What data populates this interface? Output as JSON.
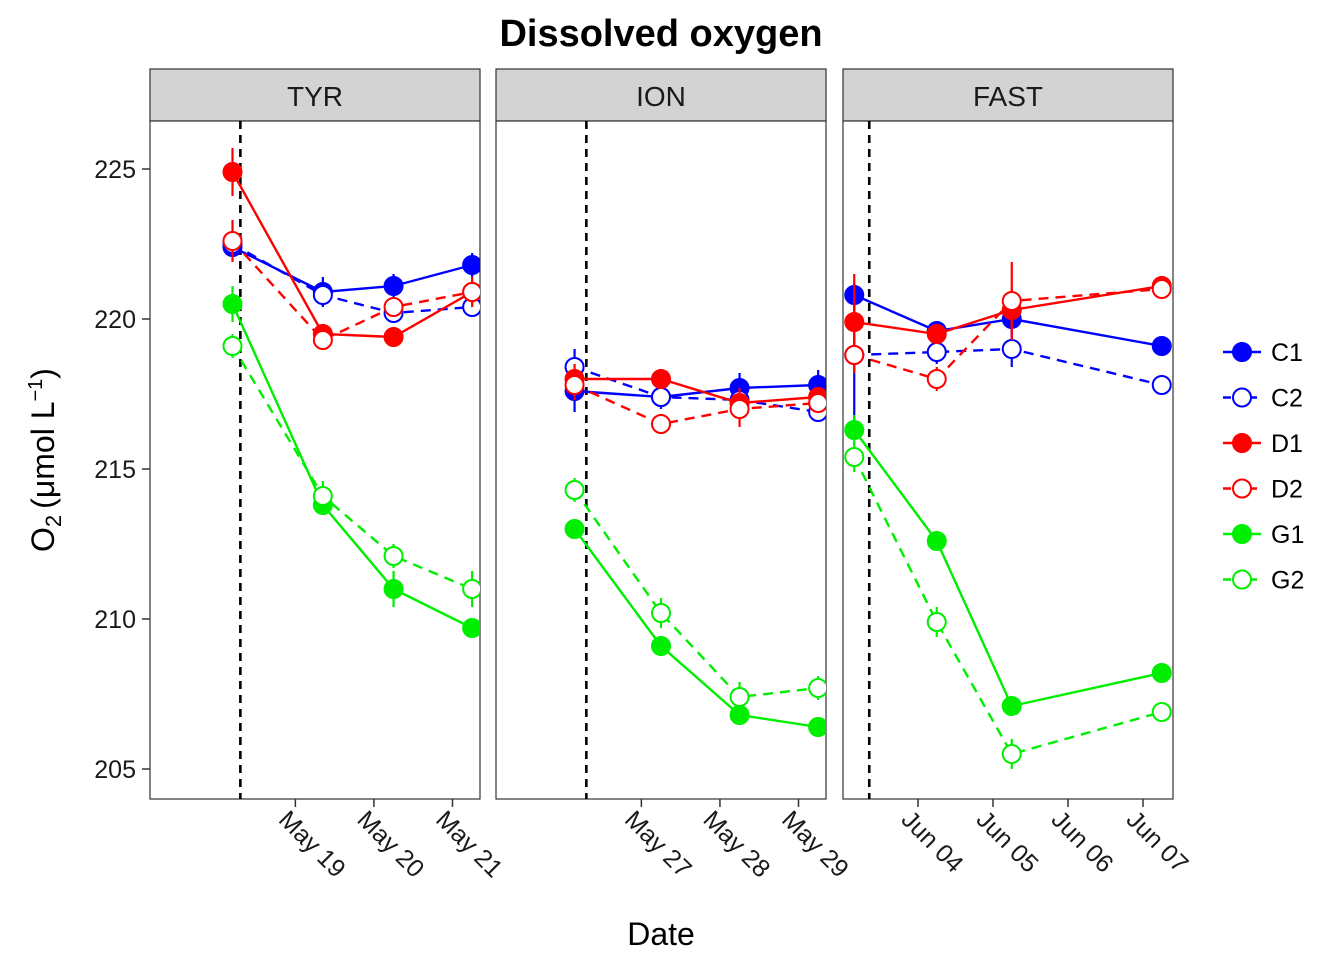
{
  "chart_data": {
    "type": "line",
    "title": "Dissolved oxygen",
    "xlabel": "Date",
    "ylabel": "O₂ (μmol L⁻¹)",
    "ylabel_parts": {
      "main": "O",
      "sub": "2",
      "open": "(",
      "unit": "μmol L",
      "sup": "−1",
      "close": ")"
    },
    "ylim": [
      204,
      226.6
    ],
    "yticks": [
      205,
      210,
      215,
      220,
      225
    ],
    "grid": false,
    "legend_position": "right",
    "legend": [
      {
        "name": "C1",
        "color": "#0000ff",
        "filled": true,
        "dashed": false
      },
      {
        "name": "C2",
        "color": "#0000ff",
        "filled": false,
        "dashed": true
      },
      {
        "name": "D1",
        "color": "#ff0000",
        "filled": true,
        "dashed": false
      },
      {
        "name": "D2",
        "color": "#ff0000",
        "filled": false,
        "dashed": true
      },
      {
        "name": "G1",
        "color": "#00ee00",
        "filled": true,
        "dashed": false
      },
      {
        "name": "G2",
        "color": "#00ee00",
        "filled": false,
        "dashed": true
      }
    ],
    "panels": [
      {
        "name": "TYR",
        "x_domain": [
          17.15,
          21.35
        ],
        "event_x": 18.3,
        "x": [
          18.2,
          19.35,
          20.25,
          21.25
        ],
        "xticks": [
          {
            "value": 19,
            "label": "May 19"
          },
          {
            "value": 20,
            "label": "May 20"
          },
          {
            "value": 21,
            "label": "May 21"
          }
        ],
        "series": [
          {
            "name": "C1",
            "values": [
              222.4,
              220.9,
              221.1,
              221.8
            ],
            "err": [
              0.3,
              0.5,
              0.4,
              0.4
            ]
          },
          {
            "name": "C2",
            "values": [
              222.5,
              220.8,
              220.2,
              220.4
            ],
            "err": [
              0.3,
              0.4,
              0.3,
              0.3
            ]
          },
          {
            "name": "D1",
            "values": [
              224.9,
              219.5,
              219.4,
              220.9
            ],
            "err": [
              0.8,
              0.3,
              0.2,
              0.5
            ]
          },
          {
            "name": "D2",
            "values": [
              222.6,
              219.3,
              220.4,
              220.9
            ],
            "err": [
              0.7,
              0.2,
              0.3,
              0.4
            ]
          },
          {
            "name": "G1",
            "values": [
              220.5,
              213.8,
              211.0,
              209.7
            ],
            "err": [
              0.6,
              0.3,
              0.6,
              0.2
            ]
          },
          {
            "name": "G2",
            "values": [
              219.1,
              214.1,
              212.1,
              211.0
            ],
            "err": [
              0.4,
              0.5,
              0.4,
              0.6
            ]
          }
        ]
      },
      {
        "name": "ION",
        "x_domain": [
          25.15,
          29.35
        ],
        "event_x": 26.3,
        "x": [
          26.15,
          27.25,
          28.25,
          29.25
        ],
        "xticks": [
          {
            "value": 27,
            "label": "May 27"
          },
          {
            "value": 28,
            "label": "May 28"
          },
          {
            "value": 29,
            "label": "May 29"
          }
        ],
        "series": [
          {
            "name": "C1",
            "values": [
              217.6,
              217.4,
              217.7,
              217.8
            ],
            "err": [
              0.7,
              0.4,
              0.5,
              0.5
            ]
          },
          {
            "name": "C2",
            "values": [
              218.4,
              217.4,
              217.3,
              216.9
            ],
            "err": [
              0.6,
              0.3,
              0.4,
              0.3
            ]
          },
          {
            "name": "D1",
            "values": [
              218.0,
              218.0,
              217.2,
              217.4
            ],
            "err": [
              0.5,
              0.3,
              0.5,
              0.3
            ]
          },
          {
            "name": "D2",
            "values": [
              217.8,
              216.5,
              217.0,
              217.2
            ],
            "err": [
              0.5,
              0.3,
              0.6,
              0.3
            ]
          },
          {
            "name": "G1",
            "values": [
              213.0,
              209.1,
              206.8,
              206.4
            ],
            "err": [
              0.3,
              0.3,
              0.3,
              0.2
            ]
          },
          {
            "name": "G2",
            "values": [
              214.3,
              210.2,
              207.4,
              207.7
            ],
            "err": [
              0.4,
              0.5,
              0.5,
              0.4
            ]
          }
        ]
      },
      {
        "name": "FAST",
        "x_domain": [
          3.0,
          7.4
        ],
        "event_x": 3.35,
        "x": [
          3.15,
          4.25,
          5.25,
          7.25
        ],
        "xticks": [
          {
            "value": 4,
            "label": "Jun 04"
          },
          {
            "value": 5,
            "label": "Jun 05"
          },
          {
            "value": 6,
            "label": "Jun 06"
          },
          {
            "value": 7,
            "label": "Jun 07"
          }
        ],
        "series": [
          {
            "name": "C1",
            "values": [
              220.8,
              219.6,
              220.0,
              219.1
            ],
            "err": [
              0.4,
              0.3,
              0.5,
              0.3
            ]
          },
          {
            "name": "C2",
            "values": [
              218.8,
              218.9,
              219.0,
              217.8
            ],
            "err": [
              2.2,
              0.4,
              0.6,
              0.3
            ]
          },
          {
            "name": "D1",
            "values": [
              219.9,
              219.5,
              220.3,
              221.1
            ],
            "err": [
              1.6,
              0.3,
              0.7,
              0.3
            ]
          },
          {
            "name": "D2",
            "values": [
              218.8,
              218.0,
              220.6,
              221.0
            ],
            "err": [
              0.6,
              0.4,
              1.3,
              0.3
            ]
          },
          {
            "name": "G1",
            "values": [
              216.3,
              212.6,
              207.1,
              208.2
            ],
            "err": [
              0.5,
              0.3,
              0.3,
              0.3
            ]
          },
          {
            "name": "G2",
            "values": [
              215.4,
              209.9,
              205.5,
              206.9
            ],
            "err": [
              0.5,
              0.5,
              0.5,
              0.3
            ]
          }
        ]
      }
    ]
  }
}
